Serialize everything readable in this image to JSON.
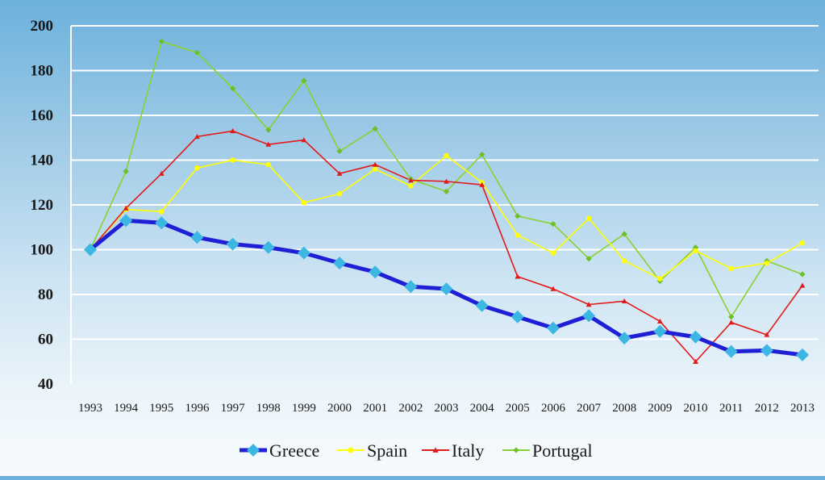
{
  "chart_data": {
    "type": "line",
    "title": "",
    "xlabel": "",
    "ylabel": "",
    "x": [
      "1993",
      "1994",
      "1995",
      "1996",
      "1997",
      "1998",
      "1999",
      "2000",
      "2001",
      "2002",
      "2003",
      "2004",
      "2005",
      "2006",
      "2007",
      "2008",
      "2009",
      "2010",
      "2011",
      "2012",
      "2013"
    ],
    "ylim": [
      40,
      200
    ],
    "yticks": [
      40,
      60,
      80,
      100,
      120,
      140,
      160,
      180,
      200
    ],
    "grid": true,
    "legend_position": "bottom",
    "series": [
      {
        "name": "Greece",
        "color": "#1f1fd6",
        "marker_color": "#3cb6e3",
        "marker": "diamond",
        "values": [
          100,
          113,
          112,
          105.5,
          102.5,
          101,
          98.5,
          94,
          90,
          83.5,
          82.5,
          75,
          70,
          65,
          70.5,
          60.5,
          63.5,
          61,
          54.5,
          55,
          53
        ]
      },
      {
        "name": "Spain",
        "color": "#ffff00",
        "marker": "circle",
        "values": [
          100,
          118,
          117,
          136.5,
          140,
          138,
          121,
          125,
          136,
          128.5,
          142,
          130,
          106.5,
          98.5,
          114,
          95,
          87,
          99.5,
          91.5,
          94,
          103
        ]
      },
      {
        "name": "Italy",
        "color": "#e31a1a",
        "marker": "triangle",
        "values": [
          100,
          118.5,
          134,
          150.5,
          153,
          147,
          149,
          134,
          138,
          131,
          130.5,
          129,
          88,
          82.5,
          75.5,
          77,
          68,
          50,
          67.5,
          62,
          84
        ]
      },
      {
        "name": "Portugal",
        "color": "#8ad12e",
        "marker": "diamond",
        "values": [
          100,
          135,
          193,
          188,
          172,
          153.5,
          175.5,
          144,
          154,
          131.5,
          126,
          142.5,
          115,
          111.5,
          96,
          107,
          86,
          101,
          70,
          95,
          89
        ]
      }
    ]
  }
}
